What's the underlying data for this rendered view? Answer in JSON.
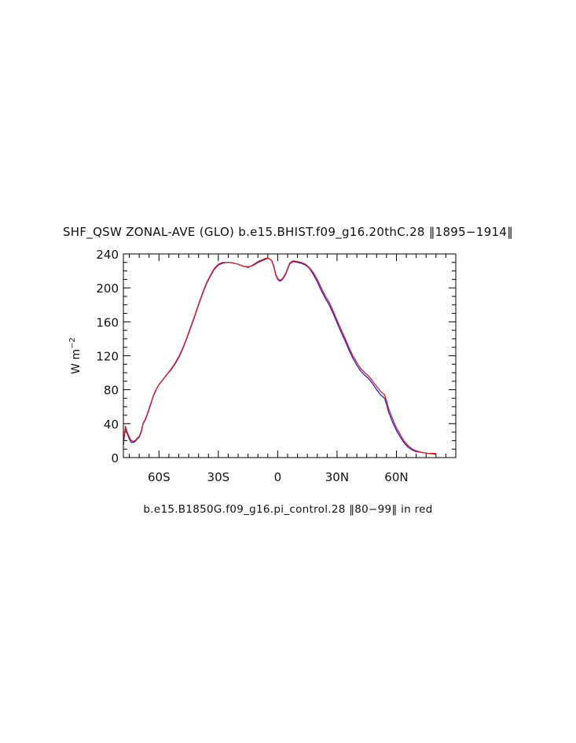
{
  "chart_data": {
    "type": "line",
    "title": "SHF_QSW ZONAL-AVE (GLO) b.e15.BHIST.f09_g16.20thC.28 ‖1895−1914‖",
    "subtitle": "b.e15.B1850G.f09_g16.pi_control.28 ‖80−99‖ in red",
    "ylabel": "W m",
    "ylabel_superscript": "−2",
    "xlim": [
      -78,
      90
    ],
    "ylim": [
      0,
      240
    ],
    "x_ticks": [
      {
        "value": -60,
        "label": "60S"
      },
      {
        "value": -30,
        "label": "30S"
      },
      {
        "value": 0,
        "label": "0"
      },
      {
        "value": 30,
        "label": "30N"
      },
      {
        "value": 60,
        "label": "60N"
      }
    ],
    "y_ticks": [
      0,
      40,
      80,
      120,
      160,
      200,
      240
    ],
    "grid": false,
    "series": [
      {
        "color": "#1f1fe0",
        "points": [
          [
            -78,
            15
          ],
          [
            -77,
            35
          ],
          [
            -76,
            28
          ],
          [
            -75,
            22
          ],
          [
            -74,
            18
          ],
          [
            -73,
            18
          ],
          [
            -72,
            19
          ],
          [
            -71,
            22
          ],
          [
            -70,
            24
          ],
          [
            -69,
            30
          ],
          [
            -68,
            40
          ],
          [
            -67,
            44
          ],
          [
            -66,
            50
          ],
          [
            -65,
            57
          ],
          [
            -64,
            64
          ],
          [
            -63,
            72
          ],
          [
            -62,
            77
          ],
          [
            -61,
            82
          ],
          [
            -60,
            86
          ],
          [
            -58,
            92
          ],
          [
            -56,
            98
          ],
          [
            -54,
            103
          ],
          [
            -52,
            110
          ],
          [
            -50,
            118
          ],
          [
            -48,
            128
          ],
          [
            -46,
            140
          ],
          [
            -44,
            153
          ],
          [
            -42,
            166
          ],
          [
            -40,
            180
          ],
          [
            -38,
            193
          ],
          [
            -36,
            205
          ],
          [
            -34,
            214
          ],
          [
            -32,
            222
          ],
          [
            -30,
            227
          ],
          [
            -28,
            229
          ],
          [
            -26,
            230
          ],
          [
            -24,
            230
          ],
          [
            -22,
            229
          ],
          [
            -20,
            228
          ],
          [
            -18,
            226
          ],
          [
            -16,
            225
          ],
          [
            -15,
            224
          ],
          [
            -14,
            225
          ],
          [
            -12,
            227
          ],
          [
            -10,
            230
          ],
          [
            -8,
            232
          ],
          [
            -6,
            234
          ],
          [
            -5,
            235
          ],
          [
            -4,
            234
          ],
          [
            -3,
            232
          ],
          [
            -2,
            225
          ],
          [
            -1,
            215
          ],
          [
            0,
            210
          ],
          [
            1,
            208
          ],
          [
            2,
            209
          ],
          [
            3,
            212
          ],
          [
            4,
            216
          ],
          [
            5,
            222
          ],
          [
            6,
            228
          ],
          [
            7,
            230
          ],
          [
            8,
            231
          ],
          [
            10,
            230
          ],
          [
            12,
            229
          ],
          [
            14,
            227
          ],
          [
            16,
            223
          ],
          [
            18,
            216
          ],
          [
            20,
            207
          ],
          [
            22,
            197
          ],
          [
            24,
            188
          ],
          [
            26,
            180
          ],
          [
            28,
            170
          ],
          [
            30,
            159
          ],
          [
            32,
            148
          ],
          [
            34,
            138
          ],
          [
            36,
            127
          ],
          [
            38,
            117
          ],
          [
            40,
            109
          ],
          [
            42,
            102
          ],
          [
            44,
            97
          ],
          [
            46,
            93
          ],
          [
            48,
            87
          ],
          [
            50,
            80
          ],
          [
            52,
            74
          ],
          [
            54,
            70
          ],
          [
            55,
            63
          ],
          [
            56,
            54
          ],
          [
            58,
            42
          ],
          [
            60,
            32
          ],
          [
            62,
            24
          ],
          [
            64,
            17
          ],
          [
            66,
            12
          ],
          [
            68,
            9
          ],
          [
            70,
            7
          ],
          [
            73,
            6
          ],
          [
            76,
            5
          ],
          [
            80,
            4
          ]
        ]
      },
      {
        "color": "#e01f1f",
        "points": [
          [
            -78,
            16
          ],
          [
            -77,
            37
          ],
          [
            -76,
            30
          ],
          [
            -75,
            24
          ],
          [
            -74,
            20
          ],
          [
            -73,
            19
          ],
          [
            -72,
            20
          ],
          [
            -71,
            23
          ],
          [
            -70,
            25
          ],
          [
            -69,
            31
          ],
          [
            -68,
            41
          ],
          [
            -67,
            45
          ],
          [
            -66,
            51
          ],
          [
            -65,
            58
          ],
          [
            -64,
            65
          ],
          [
            -63,
            72
          ],
          [
            -62,
            78
          ],
          [
            -61,
            82
          ],
          [
            -60,
            86
          ],
          [
            -58,
            92
          ],
          [
            -56,
            98
          ],
          [
            -54,
            104
          ],
          [
            -52,
            111
          ],
          [
            -50,
            119
          ],
          [
            -48,
            129
          ],
          [
            -46,
            141
          ],
          [
            -44,
            154
          ],
          [
            -42,
            167
          ],
          [
            -40,
            181
          ],
          [
            -38,
            194
          ],
          [
            -36,
            206
          ],
          [
            -34,
            215
          ],
          [
            -32,
            223
          ],
          [
            -30,
            228
          ],
          [
            -28,
            230
          ],
          [
            -26,
            230
          ],
          [
            -24,
            230
          ],
          [
            -22,
            229
          ],
          [
            -20,
            228
          ],
          [
            -18,
            226
          ],
          [
            -16,
            225
          ],
          [
            -15,
            225
          ],
          [
            -14,
            225
          ],
          [
            -12,
            228
          ],
          [
            -10,
            231
          ],
          [
            -8,
            233
          ],
          [
            -6,
            235
          ],
          [
            -5,
            235
          ],
          [
            -4,
            234
          ],
          [
            -3,
            232
          ],
          [
            -2,
            226
          ],
          [
            -1,
            216
          ],
          [
            0,
            211
          ],
          [
            1,
            209
          ],
          [
            2,
            210
          ],
          [
            3,
            213
          ],
          [
            4,
            217
          ],
          [
            5,
            223
          ],
          [
            6,
            229
          ],
          [
            7,
            231
          ],
          [
            8,
            232
          ],
          [
            10,
            231
          ],
          [
            12,
            230
          ],
          [
            14,
            228
          ],
          [
            16,
            224
          ],
          [
            18,
            218
          ],
          [
            20,
            210
          ],
          [
            22,
            200
          ],
          [
            24,
            191
          ],
          [
            26,
            183
          ],
          [
            28,
            173
          ],
          [
            30,
            162
          ],
          [
            32,
            151
          ],
          [
            34,
            141
          ],
          [
            36,
            130
          ],
          [
            38,
            120
          ],
          [
            40,
            112
          ],
          [
            42,
            105
          ],
          [
            44,
            100
          ],
          [
            46,
            96
          ],
          [
            48,
            90
          ],
          [
            50,
            84
          ],
          [
            52,
            78
          ],
          [
            54,
            74
          ],
          [
            55,
            67
          ],
          [
            56,
            58
          ],
          [
            58,
            46
          ],
          [
            60,
            35
          ],
          [
            62,
            27
          ],
          [
            64,
            19
          ],
          [
            66,
            14
          ],
          [
            68,
            10
          ],
          [
            70,
            8
          ],
          [
            73,
            6
          ],
          [
            76,
            5
          ],
          [
            80,
            5
          ]
        ]
      }
    ]
  }
}
